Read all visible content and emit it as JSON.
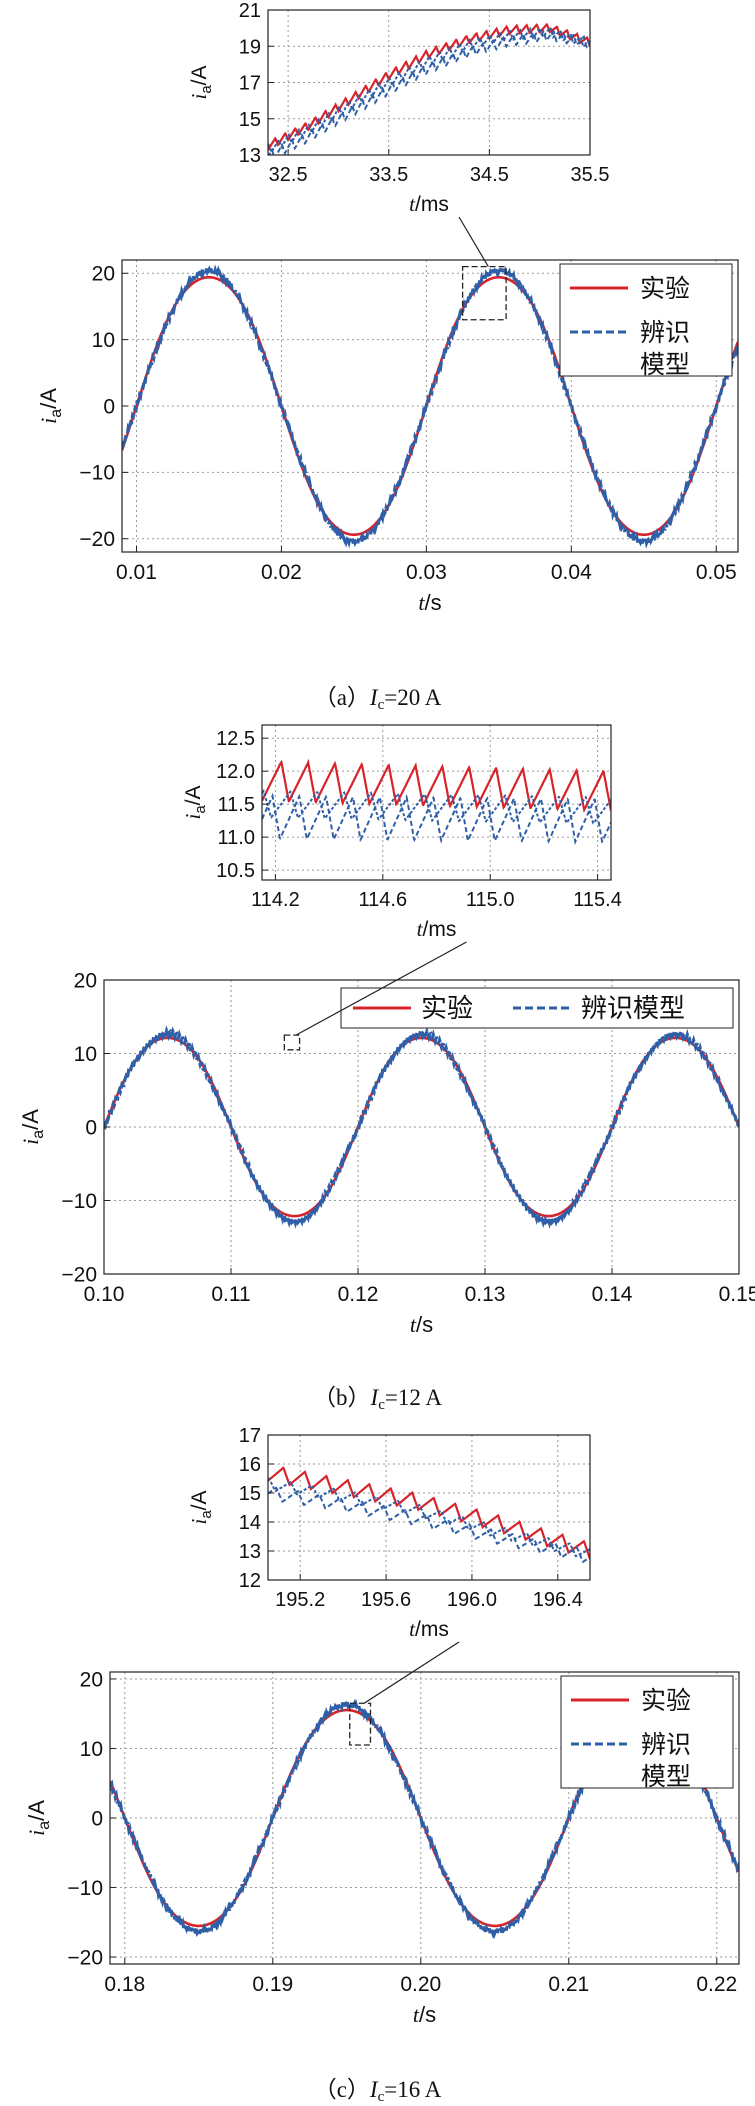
{
  "captions": [
    {
      "prefix": "（a）",
      "symbol": "I",
      "sub": "c",
      "value": "=20 A"
    },
    {
      "prefix": "（b）",
      "symbol": "I",
      "sub": "c",
      "value": "=12 A"
    },
    {
      "prefix": "（c）",
      "symbol": "I",
      "sub": "c",
      "value": "=16 A"
    }
  ],
  "colors": {
    "experiment": "#d8232a",
    "model": "#2f5fa7",
    "grid": "#9a9a9a"
  },
  "chart_data": [
    {
      "id": "a-inset",
      "type": "line",
      "xlabel": {
        "sym": "t",
        "unit": "/ms"
      },
      "ylabel": {
        "sym": "i",
        "sub": "a",
        "unit": "/A"
      },
      "xlim": [
        32.3,
        35.5
      ],
      "ylim": [
        13,
        21
      ],
      "xticks": [
        32.5,
        33.5,
        34.5,
        35.5
      ],
      "yticks": [
        13,
        15,
        17,
        19,
        21
      ],
      "xtick_labels": [
        "32.5",
        "33.5",
        "34.5",
        "35.5"
      ],
      "ytick_labels": [
        "13",
        "15",
        "17",
        "19",
        "21"
      ],
      "grid": true,
      "series": [
        {
          "role": "experiment",
          "x": [
            32.3,
            32.7,
            33.1,
            33.5,
            33.9,
            34.3,
            34.7,
            35.1,
            35.5
          ],
          "y": [
            13.5,
            14.6,
            16.0,
            17.4,
            18.6,
            19.4,
            19.9,
            20.0,
            19.2
          ],
          "ripple": 0.45,
          "ripple_period": 0.1
        },
        {
          "role": "model",
          "x": [
            32.3,
            32.7,
            33.1,
            33.5,
            33.9,
            34.3,
            34.7,
            35.1,
            35.5
          ],
          "y": [
            12.9,
            14.0,
            15.3,
            16.6,
            17.8,
            18.7,
            19.3,
            19.6,
            19.2
          ],
          "ripple": 0.55,
          "ripple_period": 0.1
        },
        {
          "role": "model2",
          "x": [
            32.3,
            32.7,
            33.1,
            33.5,
            33.9,
            34.3,
            34.7,
            35.1,
            35.5
          ],
          "y": [
            13.3,
            14.4,
            15.7,
            17.0,
            18.2,
            19.1,
            19.6,
            19.8,
            19.1
          ],
          "ripple": 0.5,
          "ripple_period": 0.1
        }
      ]
    },
    {
      "id": "a-main",
      "type": "line",
      "xlabel": {
        "sym": "t",
        "unit": "/s"
      },
      "ylabel": {
        "sym": "i",
        "sub": "a",
        "unit": "/A"
      },
      "xlim": [
        0.009,
        0.0515
      ],
      "ylim": [
        -22,
        22
      ],
      "xticks": [
        0.01,
        0.02,
        0.03,
        0.04,
        0.05
      ],
      "yticks": [
        -20,
        -10,
        0,
        10,
        20
      ],
      "xtick_labels": [
        "0.01",
        "0.02",
        "0.03",
        "0.04",
        "0.05"
      ],
      "ytick_labels": [
        "−20",
        "−10",
        "0",
        "10",
        "20"
      ],
      "grid": true,
      "legend": {
        "placement": "top-right",
        "entries": [
          {
            "role": "experiment",
            "label": "实验"
          },
          {
            "role": "model",
            "label": "辨识\n模型"
          }
        ]
      },
      "series": [
        {
          "role": "experiment",
          "kind": "sine",
          "amplitude": 20,
          "frequency_hz": 50,
          "phase_zero_s": 0.01
        },
        {
          "role": "model",
          "kind": "sine",
          "amplitude": 20,
          "frequency_hz": 50,
          "phase_zero_s": 0.01
        }
      ],
      "zoom_box": {
        "x": [
          0.0325,
          0.0355
        ],
        "y": [
          13,
          21
        ],
        "links_to": "a-inset"
      }
    },
    {
      "id": "b-inset",
      "type": "line",
      "xlabel": {
        "sym": "t",
        "unit": "/ms"
      },
      "ylabel": {
        "sym": "i",
        "sub": "a",
        "unit": "/A"
      },
      "xlim": [
        114.15,
        115.45
      ],
      "ylim": [
        10.35,
        12.7
      ],
      "xticks": [
        114.2,
        114.6,
        115.0,
        115.4
      ],
      "yticks": [
        10.5,
        11.0,
        11.5,
        12.0,
        12.5
      ],
      "xtick_labels": [
        "114.2",
        "114.6",
        "115.0",
        "115.4"
      ],
      "ytick_labels": [
        "10.5",
        "11.0",
        "11.5",
        "12.0",
        "12.5"
      ],
      "grid": true,
      "series": [
        {
          "role": "experiment",
          "x": [
            114.15,
            115.45
          ],
          "y": [
            11.85,
            11.7
          ],
          "ripple": 0.6,
          "ripple_period": 0.1
        },
        {
          "role": "model",
          "x": [
            114.15,
            115.45
          ],
          "y": [
            11.3,
            11.25
          ],
          "ripple": 0.65,
          "ripple_period": 0.1
        },
        {
          "role": "model2",
          "x": [
            114.15,
            115.45
          ],
          "y": [
            11.5,
            11.4
          ],
          "ripple": 0.4,
          "ripple_period": 0.1
        }
      ]
    },
    {
      "id": "b-main",
      "type": "line",
      "xlabel": {
        "sym": "t",
        "unit": "/s"
      },
      "ylabel": {
        "sym": "i",
        "sub": "a",
        "unit": "/A"
      },
      "xlim": [
        0.1,
        0.15
      ],
      "ylim": [
        -20,
        20
      ],
      "xticks": [
        0.1,
        0.11,
        0.12,
        0.13,
        0.14,
        0.15
      ],
      "yticks": [
        -20,
        -10,
        0,
        10,
        20
      ],
      "xtick_labels": [
        "0.10",
        "0.11",
        "0.12",
        "0.13",
        "0.14",
        "0.15"
      ],
      "ytick_labels": [
        "−20",
        "−10",
        "0",
        "10",
        "20"
      ],
      "grid": true,
      "legend": {
        "placement": "top-right",
        "entries": [
          {
            "role": "experiment",
            "label": "实验"
          },
          {
            "role": "model",
            "label": "辨识模型"
          }
        ]
      },
      "series": [
        {
          "role": "experiment",
          "kind": "sine",
          "amplitude": 12.5,
          "frequency_hz": 50,
          "phase_zero_s": 0.1
        },
        {
          "role": "model",
          "kind": "sine",
          "amplitude": 12.5,
          "frequency_hz": 50,
          "phase_zero_s": 0.1
        }
      ],
      "zoom_box": {
        "x": [
          0.1142,
          0.1154
        ],
        "y": [
          10.5,
          12.5
        ],
        "links_to": "b-inset"
      }
    },
    {
      "id": "c-inset",
      "type": "line",
      "xlabel": {
        "sym": "t",
        "unit": "/ms"
      },
      "ylabel": {
        "sym": "i",
        "sub": "a",
        "unit": "/A"
      },
      "xlim": [
        195.05,
        196.55
      ],
      "ylim": [
        12,
        17
      ],
      "xticks": [
        195.2,
        195.6,
        196.0,
        196.4
      ],
      "yticks": [
        12,
        13,
        14,
        15,
        16,
        17
      ],
      "xtick_labels": [
        "195.2",
        "195.6",
        "196.0",
        "196.4"
      ],
      "ytick_labels": [
        "12",
        "13",
        "14",
        "15",
        "16",
        "17"
      ],
      "grid": true,
      "series": [
        {
          "role": "experiment",
          "x": [
            195.05,
            195.4,
            195.75,
            196.1,
            196.55
          ],
          "y": [
            15.7,
            15.2,
            14.7,
            14.0,
            13.0
          ],
          "ripple": 0.55,
          "ripple_period": 0.1
        },
        {
          "role": "model",
          "x": [
            195.05,
            195.4,
            195.75,
            196.1,
            196.55
          ],
          "y": [
            15.0,
            14.6,
            14.1,
            13.5,
            12.8
          ],
          "ripple": 0.45,
          "ripple_period": 0.1
        },
        {
          "role": "model2",
          "x": [
            195.05,
            195.4,
            195.75,
            196.1,
            196.55
          ],
          "y": [
            15.3,
            14.9,
            14.4,
            13.7,
            12.9
          ],
          "ripple": 0.4,
          "ripple_period": 0.1
        }
      ]
    },
    {
      "id": "c-main",
      "type": "line",
      "xlabel": {
        "sym": "t",
        "unit": "/s"
      },
      "ylabel": {
        "sym": "i",
        "sub": "a",
        "unit": "/A"
      },
      "xlim": [
        0.179,
        0.2215
      ],
      "ylim": [
        -21,
        21
      ],
      "xticks": [
        0.18,
        0.19,
        0.2,
        0.21,
        0.22
      ],
      "yticks": [
        -20,
        -10,
        0,
        10,
        20
      ],
      "xtick_labels": [
        "0.18",
        "0.19",
        "0.20",
        "0.21",
        "0.22"
      ],
      "ytick_labels": [
        "−20",
        "−10",
        "0",
        "10",
        "20"
      ],
      "grid": true,
      "legend": {
        "placement": "top-right",
        "entries": [
          {
            "role": "experiment",
            "label": "实验"
          },
          {
            "role": "model",
            "label": "辨识\n模型"
          }
        ]
      },
      "series": [
        {
          "role": "experiment",
          "kind": "sine",
          "amplitude": 16,
          "frequency_hz": 50,
          "phase_zero_s": 0.19
        },
        {
          "role": "model",
          "kind": "sine",
          "amplitude": 16,
          "frequency_hz": 50,
          "phase_zero_s": 0.19
        }
      ],
      "zoom_box": {
        "x": [
          0.1952,
          0.1966
        ],
        "y": [
          10.5,
          16.5
        ],
        "links_to": "c-inset"
      }
    }
  ]
}
